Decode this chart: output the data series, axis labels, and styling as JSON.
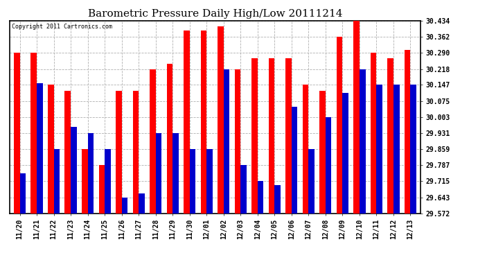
{
  "title": "Barometric Pressure Daily High/Low 20111214",
  "copyright": "Copyright 2011 Cartronics.com",
  "categories": [
    "11/20",
    "11/21",
    "11/22",
    "11/23",
    "11/24",
    "11/25",
    "11/26",
    "11/27",
    "11/28",
    "11/29",
    "11/30",
    "12/01",
    "12/02",
    "12/03",
    "12/04",
    "12/05",
    "12/06",
    "12/07",
    "12/08",
    "12/09",
    "12/10",
    "12/11",
    "12/12",
    "12/13"
  ],
  "high_values": [
    30.29,
    30.29,
    30.147,
    30.12,
    29.86,
    29.787,
    30.12,
    30.12,
    30.218,
    30.24,
    30.39,
    30.39,
    30.41,
    30.218,
    30.265,
    30.265,
    30.265,
    30.147,
    30.12,
    30.362,
    30.434,
    30.29,
    30.265,
    30.305
  ],
  "low_values": [
    29.75,
    30.155,
    29.86,
    29.96,
    29.931,
    29.858,
    29.643,
    29.66,
    29.931,
    29.931,
    29.86,
    29.86,
    30.218,
    29.787,
    29.715,
    29.697,
    30.05,
    29.859,
    30.003,
    30.11,
    30.218,
    30.147,
    30.147,
    30.147
  ],
  "bar_color_high": "#ff0000",
  "bar_color_low": "#0000cc",
  "bg_color": "#ffffff",
  "grid_color": "#b0b0b0",
  "ymin": 29.572,
  "ymax": 30.434,
  "yticks": [
    29.572,
    29.643,
    29.715,
    29.787,
    29.859,
    29.931,
    30.003,
    30.075,
    30.147,
    30.218,
    30.29,
    30.362,
    30.434
  ],
  "title_fontsize": 11,
  "tick_fontsize": 7,
  "bar_width": 0.35,
  "figwidth": 6.9,
  "figheight": 3.75,
  "dpi": 100
}
